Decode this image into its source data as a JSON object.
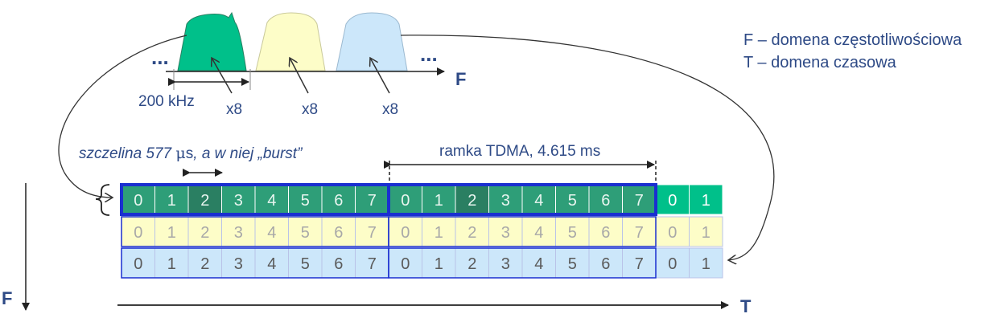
{
  "legend": {
    "f_line": "F – domena częstotliwościowa",
    "t_line": "T – domena czasowa"
  },
  "spectrum": {
    "axis_label": "F",
    "ellipsis_left": "...",
    "ellipsis_right": "...",
    "bandwidth_label": "200 kHz",
    "multiplier_labels": [
      "x8",
      "x8",
      "x8"
    ]
  },
  "timeline": {
    "slot_prefix": "szczelina 577 ",
    "slot_mu": "μ",
    "slot_s": "s",
    "slot_suffix": ", a w niej „burst”",
    "frame_label": "ramka TDMA, 4.615 ms",
    "time_axis_label": "T",
    "freq_axis_label": "F",
    "slot_numbers": [
      "0",
      "1",
      "2",
      "3",
      "4",
      "5",
      "6",
      "7",
      "0",
      "1",
      "2",
      "3",
      "4",
      "5",
      "6",
      "7",
      "0",
      "1"
    ]
  },
  "colors": {
    "green": "#00c08a",
    "green_frame": "#2e9e78",
    "green_dark_cell": "#2a7f62",
    "yellow": "#fdfdc8",
    "blue": "#cce7fa",
    "border_blue": "#1a2fd0",
    "text_blue": "#2e4a86"
  }
}
